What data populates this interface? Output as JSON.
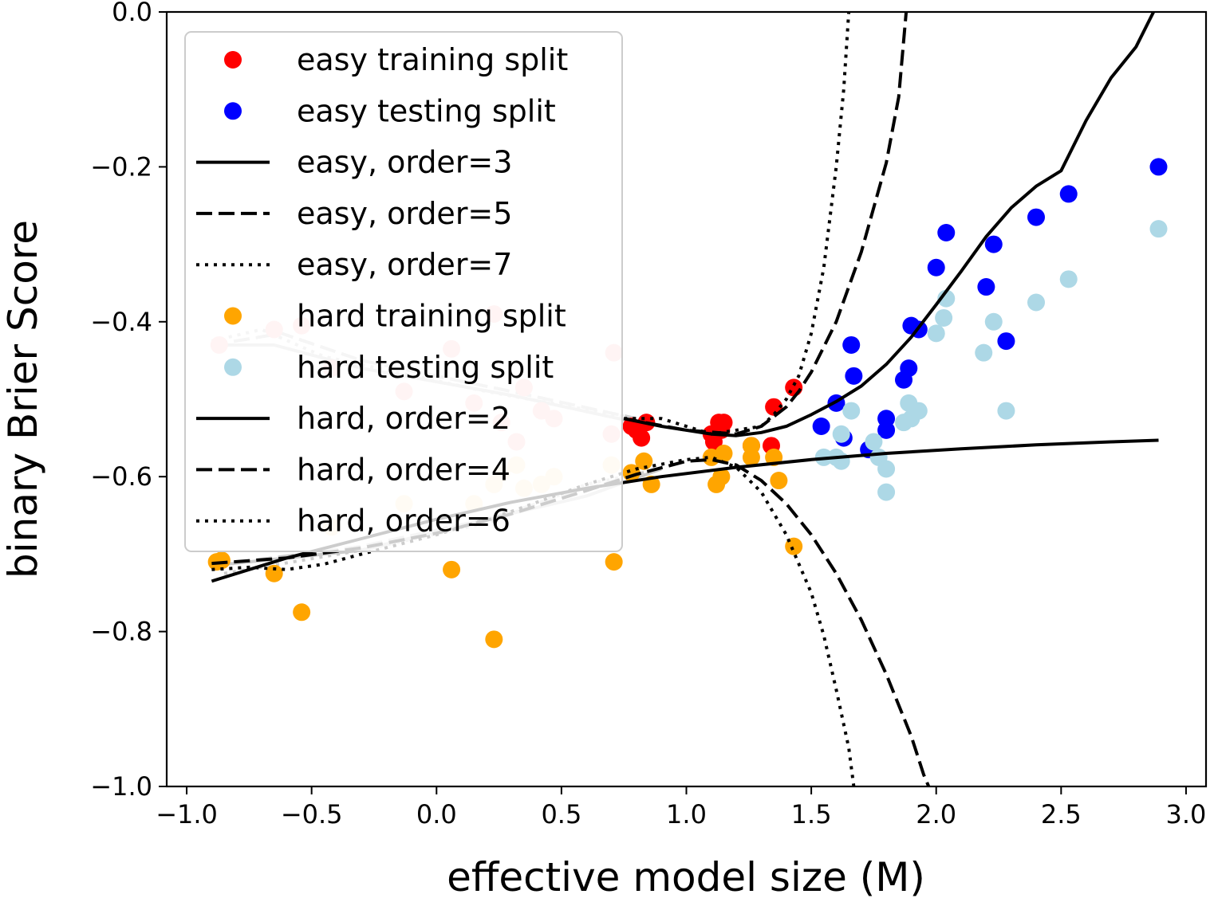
{
  "chart_data": {
    "type": "scatter",
    "title": "",
    "xlabel": "effective model size (M)",
    "ylabel": "binary Brier Score",
    "xlim": [
      -1.08,
      3.08
    ],
    "ylim": [
      -1.0,
      0.0
    ],
    "x_ticks": [
      -1.0,
      -0.5,
      0.0,
      0.5,
      1.0,
      1.5,
      2.0,
      2.5,
      3.0
    ],
    "x_tick_labels": [
      "−1.0",
      "−0.5",
      "0.0",
      "0.5",
      "1.0",
      "1.5",
      "2.0",
      "2.5",
      "3.0"
    ],
    "y_ticks": [
      0.0,
      -0.2,
      -0.4,
      -0.6,
      -0.8,
      -1.0
    ],
    "y_tick_labels": [
      "0.0",
      "−0.2",
      "−0.4",
      "−0.6",
      "−0.8",
      "−1.0"
    ],
    "legend_position": "top-left",
    "faded_series": [
      {
        "name": "easy training split (faded)",
        "color": "#ffc6c6",
        "points": [
          [
            -0.87,
            -0.43
          ],
          [
            -0.65,
            -0.41
          ],
          [
            -0.54,
            -0.405
          ],
          [
            -0.42,
            -0.46
          ],
          [
            -0.13,
            -0.49
          ],
          [
            0.06,
            -0.435
          ],
          [
            0.15,
            -0.505
          ],
          [
            0.23,
            -0.39
          ],
          [
            0.26,
            -0.53
          ],
          [
            0.32,
            -0.555
          ],
          [
            0.35,
            -0.485
          ],
          [
            0.42,
            -0.515
          ],
          [
            0.47,
            -0.525
          ],
          [
            0.7,
            -0.545
          ],
          [
            0.71,
            -0.44
          ]
        ]
      },
      {
        "name": "hard training split (faded)",
        "color": "#ffe9c6",
        "points": [
          [
            -0.42,
            -0.665
          ],
          [
            -0.13,
            -0.635
          ],
          [
            0.15,
            -0.635
          ],
          [
            0.23,
            -0.61
          ],
          [
            0.26,
            -0.595
          ],
          [
            0.32,
            -0.585
          ],
          [
            0.35,
            -0.615
          ],
          [
            0.42,
            -0.61
          ],
          [
            0.47,
            -0.6
          ],
          [
            0.7,
            -0.585
          ]
        ]
      }
    ],
    "faded_lines": [
      {
        "name": "easy order fits (faded)",
        "color": "#cccccc",
        "dash": "solid",
        "points": [
          [
            -0.9,
            -0.43
          ],
          [
            -0.65,
            -0.43
          ],
          [
            -0.3,
            -0.46
          ],
          [
            0.3,
            -0.495
          ],
          [
            0.8,
            -0.53
          ]
        ]
      },
      {
        "name": "easy order fits (faded, dashed)",
        "color": "#cccccc",
        "dash": "dashed",
        "points": [
          [
            -0.9,
            -0.43
          ],
          [
            -0.62,
            -0.415
          ],
          [
            -0.3,
            -0.45
          ],
          [
            0.3,
            -0.49
          ],
          [
            0.8,
            -0.525
          ]
        ]
      },
      {
        "name": "easy order fits (faded, dotted)",
        "color": "#cccccc",
        "dash": "dotted",
        "points": [
          [
            -0.9,
            -0.425
          ],
          [
            -0.7,
            -0.41
          ],
          [
            -0.45,
            -0.445
          ],
          [
            0.2,
            -0.49
          ],
          [
            0.8,
            -0.525
          ]
        ]
      },
      {
        "name": "hard order fits (faded)",
        "color": "#cccccc",
        "dash": "solid",
        "points": [
          [
            -0.9,
            -0.715
          ],
          [
            -0.3,
            -0.695
          ],
          [
            0.2,
            -0.655
          ],
          [
            0.6,
            -0.625
          ],
          [
            0.9,
            -0.59
          ]
        ]
      },
      {
        "name": "hard order fits (faded, dashed)",
        "color": "#cccccc",
        "dash": "dashed",
        "points": [
          [
            -0.9,
            -0.715
          ],
          [
            -0.3,
            -0.69
          ],
          [
            0.2,
            -0.655
          ],
          [
            0.6,
            -0.615
          ],
          [
            0.9,
            -0.59
          ]
        ]
      },
      {
        "name": "hard order fits (faded, dotted)",
        "color": "#cccccc",
        "dash": "dotted",
        "points": [
          [
            -0.85,
            -0.725
          ],
          [
            -0.3,
            -0.695
          ],
          [
            0.2,
            -0.66
          ],
          [
            0.6,
            -0.61
          ],
          [
            0.9,
            -0.59
          ]
        ]
      }
    ],
    "scatter_series": [
      {
        "name": "easy training split",
        "color": "#ff0000",
        "points": [
          [
            0.78,
            -0.535
          ],
          [
            0.8,
            -0.54
          ],
          [
            0.82,
            -0.55
          ],
          [
            0.84,
            -0.53
          ],
          [
            1.1,
            -0.545
          ],
          [
            1.11,
            -0.555
          ],
          [
            1.13,
            -0.53
          ],
          [
            1.14,
            -0.54
          ],
          [
            1.15,
            -0.53
          ],
          [
            1.26,
            -0.56
          ],
          [
            1.34,
            -0.56
          ],
          [
            1.35,
            -0.51
          ],
          [
            1.43,
            -0.485
          ]
        ]
      },
      {
        "name": "easy testing split",
        "color": "#0000ff",
        "points": [
          [
            1.54,
            -0.535
          ],
          [
            1.6,
            -0.505
          ],
          [
            1.63,
            -0.55
          ],
          [
            1.66,
            -0.43
          ],
          [
            1.67,
            -0.47
          ],
          [
            1.73,
            -0.565
          ],
          [
            1.8,
            -0.525
          ],
          [
            1.8,
            -0.54
          ],
          [
            1.87,
            -0.475
          ],
          [
            1.89,
            -0.46
          ],
          [
            1.9,
            -0.405
          ],
          [
            1.93,
            -0.41
          ],
          [
            2.0,
            -0.33
          ],
          [
            2.04,
            -0.285
          ],
          [
            2.2,
            -0.355
          ],
          [
            2.23,
            -0.3
          ],
          [
            2.28,
            -0.425
          ],
          [
            2.4,
            -0.265
          ],
          [
            2.53,
            -0.235
          ],
          [
            2.89,
            -0.2
          ]
        ]
      },
      {
        "name": "hard training split",
        "color": "#ffa500",
        "points": [
          [
            -0.88,
            -0.71
          ],
          [
            -0.86,
            -0.708
          ],
          [
            -0.65,
            -0.725
          ],
          [
            -0.54,
            -0.775
          ],
          [
            0.06,
            -0.72
          ],
          [
            0.23,
            -0.81
          ],
          [
            0.71,
            -0.71
          ],
          [
            0.78,
            -0.595
          ],
          [
            0.83,
            -0.58
          ],
          [
            0.86,
            -0.61
          ],
          [
            1.1,
            -0.575
          ],
          [
            1.12,
            -0.61
          ],
          [
            1.14,
            -0.6
          ],
          [
            1.15,
            -0.57
          ],
          [
            1.26,
            -0.575
          ],
          [
            1.26,
            -0.56
          ],
          [
            1.35,
            -0.575
          ],
          [
            1.37,
            -0.605
          ],
          [
            1.43,
            -0.69
          ]
        ]
      },
      {
        "name": "hard testing split",
        "color": "#add8e6",
        "points": [
          [
            1.55,
            -0.575
          ],
          [
            1.6,
            -0.575
          ],
          [
            1.62,
            -0.545
          ],
          [
            1.62,
            -0.58
          ],
          [
            1.66,
            -0.515
          ],
          [
            1.75,
            -0.555
          ],
          [
            1.77,
            -0.575
          ],
          [
            1.8,
            -0.59
          ],
          [
            1.8,
            -0.62
          ],
          [
            1.87,
            -0.53
          ],
          [
            1.89,
            -0.505
          ],
          [
            1.9,
            -0.525
          ],
          [
            1.93,
            -0.515
          ],
          [
            2.0,
            -0.415
          ],
          [
            2.03,
            -0.395
          ],
          [
            2.04,
            -0.37
          ],
          [
            2.19,
            -0.44
          ],
          [
            2.23,
            -0.4
          ],
          [
            2.28,
            -0.515
          ],
          [
            2.4,
            -0.375
          ],
          [
            2.53,
            -0.345
          ],
          [
            2.89,
            -0.28
          ]
        ]
      }
    ],
    "fit_lines": [
      {
        "name": "easy, order=3",
        "color": "#000000",
        "dash": "solid",
        "points": [
          [
            0.75,
            -0.525
          ],
          [
            0.9,
            -0.535
          ],
          [
            1.0,
            -0.54
          ],
          [
            1.1,
            -0.545
          ],
          [
            1.2,
            -0.547
          ],
          [
            1.3,
            -0.543
          ],
          [
            1.4,
            -0.535
          ],
          [
            1.5,
            -0.52
          ],
          [
            1.6,
            -0.503
          ],
          [
            1.7,
            -0.483
          ],
          [
            1.8,
            -0.455
          ],
          [
            1.9,
            -0.42
          ],
          [
            2.0,
            -0.378
          ],
          [
            2.1,
            -0.335
          ],
          [
            2.2,
            -0.29
          ],
          [
            2.3,
            -0.253
          ],
          [
            2.4,
            -0.225
          ],
          [
            2.5,
            -0.205
          ],
          [
            2.6,
            -0.14
          ],
          [
            2.7,
            -0.085
          ],
          [
            2.8,
            -0.045
          ],
          [
            2.87,
            0.0
          ]
        ]
      },
      {
        "name": "easy, order=5",
        "color": "#000000",
        "dash": "dashed",
        "points": [
          [
            0.75,
            -0.525
          ],
          [
            1.0,
            -0.54
          ],
          [
            1.2,
            -0.545
          ],
          [
            1.3,
            -0.535
          ],
          [
            1.4,
            -0.51
          ],
          [
            1.45,
            -0.49
          ],
          [
            1.5,
            -0.465
          ],
          [
            1.6,
            -0.4
          ],
          [
            1.7,
            -0.31
          ],
          [
            1.8,
            -0.195
          ],
          [
            1.85,
            -0.11
          ],
          [
            1.88,
            0.0
          ]
        ]
      },
      {
        "name": "easy, order=7",
        "color": "#000000",
        "dash": "dotted",
        "points": [
          [
            0.75,
            -0.525
          ],
          [
            0.9,
            -0.525
          ],
          [
            1.1,
            -0.545
          ],
          [
            1.3,
            -0.535
          ],
          [
            1.35,
            -0.52
          ],
          [
            1.4,
            -0.5
          ],
          [
            1.45,
            -0.47
          ],
          [
            1.5,
            -0.415
          ],
          [
            1.55,
            -0.33
          ],
          [
            1.6,
            -0.2
          ],
          [
            1.63,
            -0.1
          ],
          [
            1.65,
            0.0
          ]
        ]
      },
      {
        "name": "hard, order=2",
        "color": "#000000",
        "dash": "solid",
        "points": [
          [
            -0.9,
            -0.735
          ],
          [
            -0.6,
            -0.705
          ],
          [
            -0.3,
            -0.68
          ],
          [
            0.0,
            -0.655
          ],
          [
            0.3,
            -0.633
          ],
          [
            0.6,
            -0.615
          ],
          [
            0.9,
            -0.6
          ],
          [
            1.2,
            -0.588
          ],
          [
            1.5,
            -0.578
          ],
          [
            1.8,
            -0.57
          ],
          [
            2.1,
            -0.564
          ],
          [
            2.4,
            -0.559
          ],
          [
            2.7,
            -0.555
          ],
          [
            2.89,
            -0.553
          ]
        ]
      },
      {
        "name": "hard, order=4",
        "color": "#000000",
        "dash": "dashed",
        "points": [
          [
            -0.9,
            -0.712
          ],
          [
            -0.6,
            -0.705
          ],
          [
            -0.3,
            -0.692
          ],
          [
            0.0,
            -0.673
          ],
          [
            0.3,
            -0.648
          ],
          [
            0.6,
            -0.618
          ],
          [
            0.8,
            -0.597
          ],
          [
            1.0,
            -0.58
          ],
          [
            1.1,
            -0.578
          ],
          [
            1.2,
            -0.585
          ],
          [
            1.3,
            -0.605
          ],
          [
            1.4,
            -0.635
          ],
          [
            1.5,
            -0.675
          ],
          [
            1.6,
            -0.725
          ],
          [
            1.7,
            -0.785
          ],
          [
            1.8,
            -0.855
          ],
          [
            1.9,
            -0.935
          ],
          [
            1.95,
            -0.985
          ],
          [
            1.97,
            -1.0
          ]
        ]
      },
      {
        "name": "hard, order=6",
        "color": "#000000",
        "dash": "dotted",
        "points": [
          [
            -0.9,
            -0.72
          ],
          [
            -0.75,
            -0.717
          ],
          [
            -0.6,
            -0.72
          ],
          [
            -0.45,
            -0.713
          ],
          [
            -0.3,
            -0.7
          ],
          [
            0.0,
            -0.675
          ],
          [
            0.3,
            -0.645
          ],
          [
            0.6,
            -0.61
          ],
          [
            0.8,
            -0.59
          ],
          [
            1.0,
            -0.578
          ],
          [
            1.1,
            -0.575
          ],
          [
            1.2,
            -0.588
          ],
          [
            1.3,
            -0.62
          ],
          [
            1.4,
            -0.675
          ],
          [
            1.5,
            -0.75
          ],
          [
            1.55,
            -0.805
          ],
          [
            1.6,
            -0.875
          ],
          [
            1.65,
            -0.95
          ],
          [
            1.67,
            -1.0
          ]
        ]
      }
    ],
    "legend": [
      {
        "label": "easy training split",
        "kind": "marker",
        "color": "#ff0000"
      },
      {
        "label": "easy testing split",
        "kind": "marker",
        "color": "#0000ff"
      },
      {
        "label": "easy, order=3",
        "kind": "line",
        "dash": "solid"
      },
      {
        "label": "easy, order=5",
        "kind": "line",
        "dash": "dashed"
      },
      {
        "label": "easy, order=7",
        "kind": "line",
        "dash": "dotted"
      },
      {
        "label": "hard training split",
        "kind": "marker",
        "color": "#ffa500"
      },
      {
        "label": "hard testing split",
        "kind": "marker",
        "color": "#add8e6"
      },
      {
        "label": "hard, order=2",
        "kind": "line",
        "dash": "solid"
      },
      {
        "label": "hard, order=4",
        "kind": "line",
        "dash": "dashed"
      },
      {
        "label": "hard, order=6",
        "kind": "line",
        "dash": "dotted"
      }
    ]
  }
}
